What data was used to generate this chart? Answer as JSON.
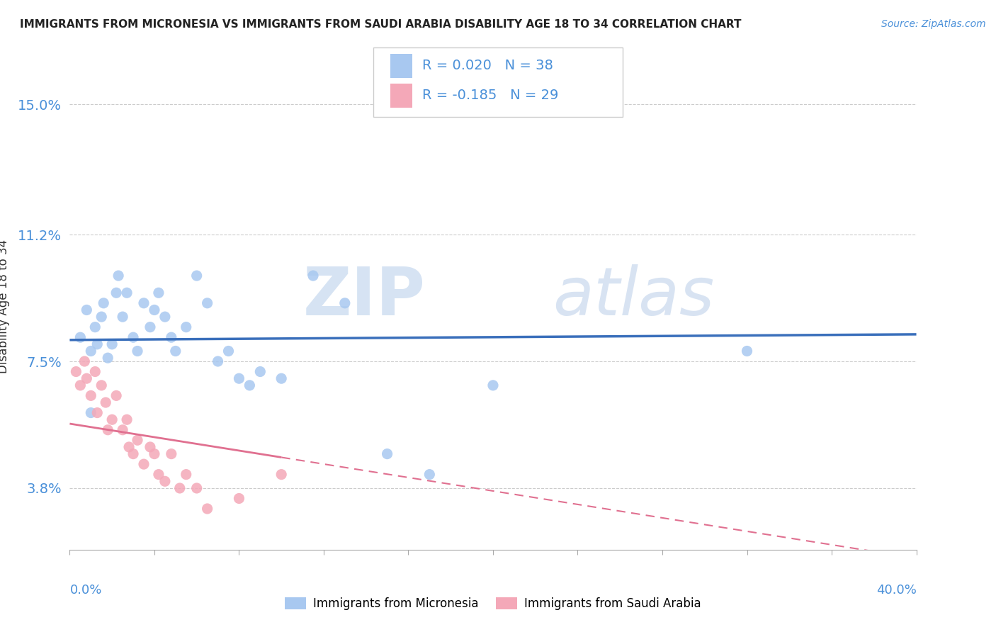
{
  "title": "IMMIGRANTS FROM MICRONESIA VS IMMIGRANTS FROM SAUDI ARABIA DISABILITY AGE 18 TO 34 CORRELATION CHART",
  "source": "Source: ZipAtlas.com",
  "ylabel": "Disability Age 18 to 34",
  "ytick_values": [
    0.038,
    0.075,
    0.112,
    0.15
  ],
  "ytick_labels": [
    "3.8%",
    "7.5%",
    "11.2%",
    "15.0%"
  ],
  "xmin": 0.0,
  "xmax": 0.4,
  "ymin": 0.02,
  "ymax": 0.162,
  "micronesia_color": "#a8c8f0",
  "saudi_color": "#f4a8b8",
  "micronesia_line_color": "#3a6fbb",
  "saudi_line_color": "#e07090",
  "micronesia_R": 0.02,
  "micronesia_N": 38,
  "saudi_R": -0.185,
  "saudi_N": 29,
  "legend_label_micronesia": "Immigrants from Micronesia",
  "legend_label_saudi": "Immigrants from Saudi Arabia",
  "watermark_ZIP": "ZIP",
  "watermark_atlas": "atlas",
  "micronesia_x": [
    0.005,
    0.008,
    0.01,
    0.012,
    0.013,
    0.015,
    0.016,
    0.018,
    0.02,
    0.022,
    0.023,
    0.025,
    0.027,
    0.03,
    0.032,
    0.035,
    0.038,
    0.04,
    0.042,
    0.045,
    0.048,
    0.05,
    0.055,
    0.06,
    0.065,
    0.07,
    0.075,
    0.08,
    0.085,
    0.09,
    0.1,
    0.115,
    0.13,
    0.15,
    0.17,
    0.2,
    0.32,
    0.01
  ],
  "micronesia_y": [
    0.082,
    0.09,
    0.078,
    0.085,
    0.08,
    0.088,
    0.092,
    0.076,
    0.08,
    0.095,
    0.1,
    0.088,
    0.095,
    0.082,
    0.078,
    0.092,
    0.085,
    0.09,
    0.095,
    0.088,
    0.082,
    0.078,
    0.085,
    0.1,
    0.092,
    0.075,
    0.078,
    0.07,
    0.068,
    0.072,
    0.07,
    0.1,
    0.092,
    0.048,
    0.042,
    0.068,
    0.078,
    0.06
  ],
  "saudi_x": [
    0.003,
    0.005,
    0.007,
    0.008,
    0.01,
    0.012,
    0.013,
    0.015,
    0.017,
    0.018,
    0.02,
    0.022,
    0.025,
    0.027,
    0.028,
    0.03,
    0.032,
    0.035,
    0.038,
    0.04,
    0.042,
    0.045,
    0.048,
    0.052,
    0.055,
    0.06,
    0.065,
    0.08,
    0.1
  ],
  "saudi_y": [
    0.072,
    0.068,
    0.075,
    0.07,
    0.065,
    0.072,
    0.06,
    0.068,
    0.063,
    0.055,
    0.058,
    0.065,
    0.055,
    0.058,
    0.05,
    0.048,
    0.052,
    0.045,
    0.05,
    0.048,
    0.042,
    0.04,
    0.048,
    0.038,
    0.042,
    0.038,
    0.032,
    0.035,
    0.042
  ]
}
